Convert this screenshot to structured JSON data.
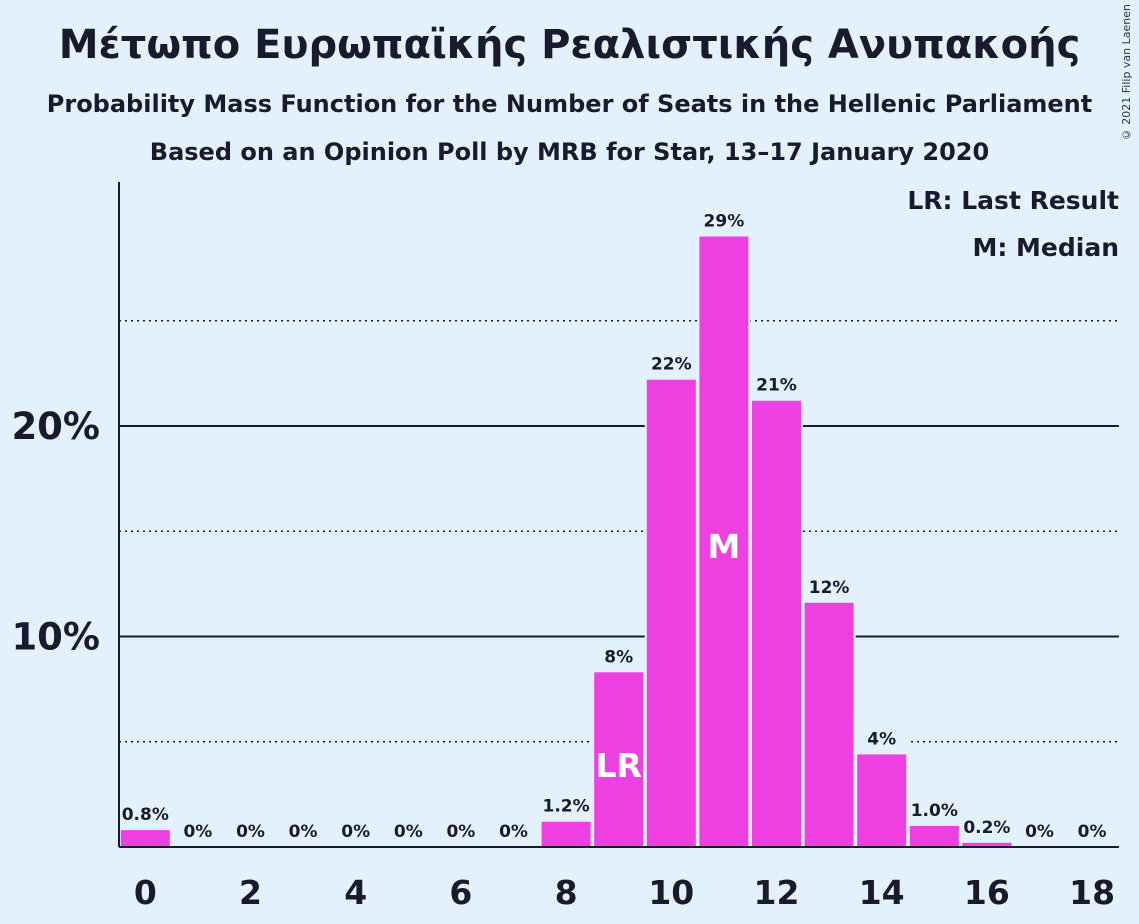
{
  "title": "Μέτωπο Ευρωπαϊκής Ρεαλιστικής Ανυπακοής",
  "subtitle": "Probability Mass Function for the Number of Seats in the Hellenic Parliament",
  "subtitle2": "Based on an Opinion Poll by MRB for Star, 13–17 January 2020",
  "copyright": "© 2021 Filip van Laenen",
  "legend": {
    "last_result": "LR: Last Result",
    "median": "M: Median"
  },
  "colors": {
    "bar": "#ee3fe0",
    "background": "#e3f1fd",
    "axis": "#1a1a2e"
  },
  "chart_data": {
    "type": "bar",
    "categories": [
      0,
      1,
      2,
      3,
      4,
      5,
      6,
      7,
      8,
      9,
      10,
      11,
      12,
      13,
      14,
      15,
      16,
      17,
      18
    ],
    "values": [
      0.8,
      0,
      0,
      0,
      0,
      0,
      0,
      0,
      1.2,
      8.3,
      22.2,
      29,
      21.2,
      11.6,
      4.4,
      1.0,
      0.2,
      0,
      0
    ],
    "value_labels": [
      "0.8%",
      "0%",
      "0%",
      "0%",
      "0%",
      "0%",
      "0%",
      "0%",
      "1.2%",
      "8%",
      "22%",
      "29%",
      "21%",
      "12%",
      "4%",
      "1.0%",
      "0.2%",
      "0%",
      "0%"
    ],
    "x_tick_labels": [
      "0",
      "2",
      "4",
      "6",
      "8",
      "10",
      "12",
      "14",
      "16",
      "18"
    ],
    "x_ticks": [
      0,
      2,
      4,
      6,
      8,
      10,
      12,
      14,
      16,
      18
    ],
    "y_tick_labels": [
      "10%",
      "20%"
    ],
    "y_ticks": [
      10,
      20
    ],
    "y_minor_gridlines": [
      5,
      15,
      25
    ],
    "ylim": [
      0,
      31.6
    ],
    "last_result": {
      "seat": 9,
      "label": "LR"
    },
    "median": {
      "seat": 11,
      "label": "M"
    }
  }
}
